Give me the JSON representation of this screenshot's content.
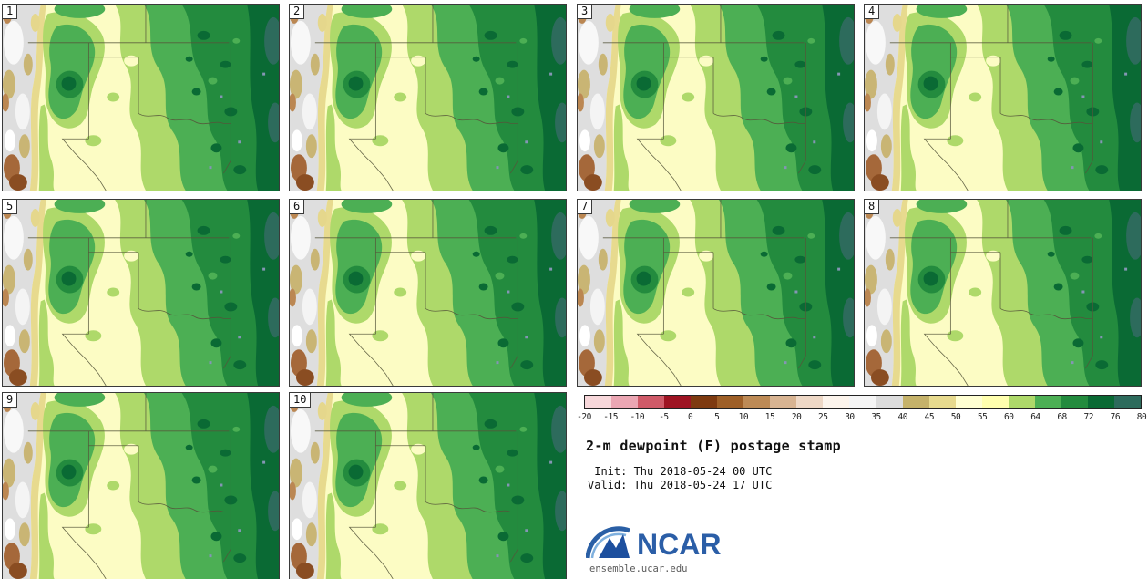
{
  "figure": {
    "title": "2-m dewpoint (F) postage stamp",
    "init_line": " Init: Thu 2018-05-24 00 UTC",
    "valid_line": "Valid: Thu 2018-05-24 17 UTC",
    "logo_text": "NCAR",
    "website": "ensemble.ucar.edu"
  },
  "panels": [
    {
      "label": "1"
    },
    {
      "label": "2"
    },
    {
      "label": "3"
    },
    {
      "label": "4"
    },
    {
      "label": "5"
    },
    {
      "label": "6"
    },
    {
      "label": "7"
    },
    {
      "label": "8"
    },
    {
      "label": "9"
    },
    {
      "label": "10"
    }
  ],
  "colorbar": {
    "units": "F",
    "ticks": [
      "-20",
      "-15",
      "-10",
      "-5",
      "0",
      "5",
      "10",
      "15",
      "20",
      "25",
      "30",
      "35",
      "40",
      "45",
      "50",
      "55",
      "60",
      "64",
      "68",
      "72",
      "76",
      "80"
    ],
    "colors": [
      "#f7d7da",
      "#eba6b3",
      "#cf5a68",
      "#9e1322",
      "#7e3a10",
      "#9e5f27",
      "#bd8a55",
      "#d8b492",
      "#eed8c6",
      "#fcf4ec",
      "#f5f5f5",
      "#dcdcdc",
      "#c5b26a",
      "#e7da8e",
      "#ffffd2",
      "#ffffae",
      "#aed96a",
      "#4caf54",
      "#238b3e",
      "#0a6a34",
      "#2d6b5c"
    ]
  },
  "map_colors": {
    "pale_yellow": "#fcfcc4",
    "light_green": "#aed96a",
    "medium_green": "#4caf54",
    "dark_green": "#238b3e",
    "darkest_green": "#0a6a34",
    "teal": "#2d6b5c",
    "gray_terrain": "#dedede",
    "brown_terrain": "#a5683a"
  }
}
